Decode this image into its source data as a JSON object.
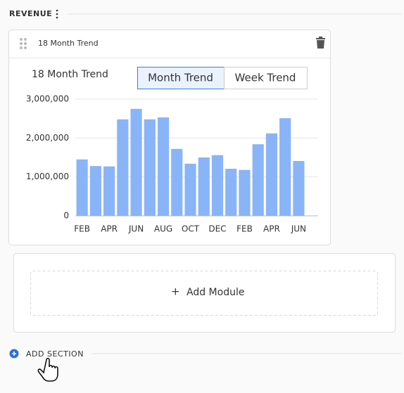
{
  "section": {
    "title": "REVENUE",
    "add_module": "Add Module",
    "add_section": "ADD SECTION"
  },
  "card": {
    "header": "18 Month Trend",
    "tabs": [
      "Month Trend",
      "Week Trend"
    ],
    "active_tab": 0
  },
  "chart_data": {
    "type": "bar",
    "title": "18 Month Trend",
    "categories": [
      "FEB",
      null,
      "APR",
      null,
      "JUN",
      null,
      "AUG",
      null,
      "OCT",
      null,
      "DEC",
      null,
      "FEB",
      null,
      "APR",
      null,
      "JUN"
    ],
    "values": [
      1450000,
      1280000,
      1270000,
      2480000,
      2750000,
      2480000,
      2530000,
      1720000,
      1340000,
      1500000,
      1560000,
      1210000,
      1180000,
      1840000,
      2120000,
      2510000,
      1410000
    ],
    "color": "#8ab4f8",
    "ylim": [
      0,
      3000000
    ],
    "yticks": [
      0,
      {
        "value": 1000000,
        "label": "1,000,000"
      },
      {
        "value": 2000000,
        "label": "2,000,000"
      },
      {
        "value": 3000000,
        "label": "3,000,000"
      }
    ],
    "grid": true
  }
}
